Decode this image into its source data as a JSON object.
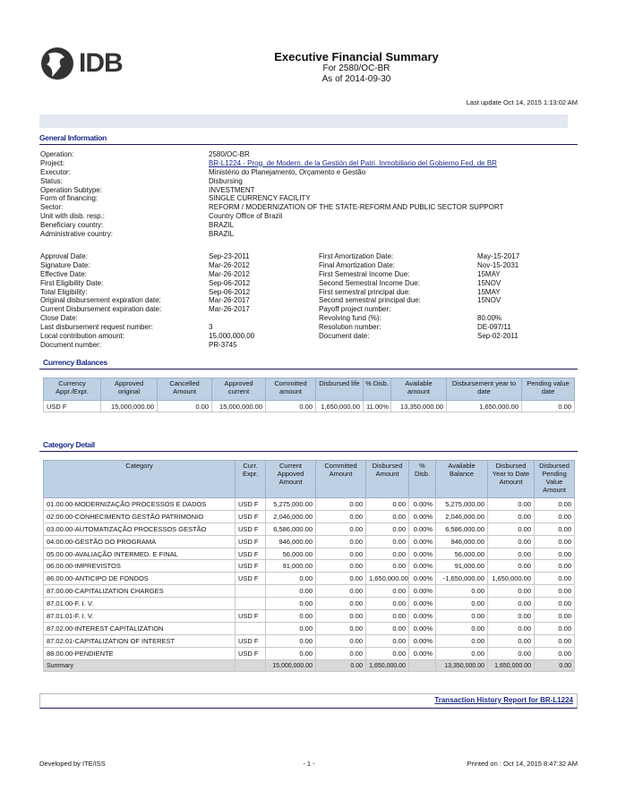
{
  "header": {
    "logo_text": "IDB",
    "title": "Executive Financial Summary",
    "subtitle": "For 2580/OC-BR",
    "as_of": "As of  2014-09-30",
    "last_update": "Last update Oct 14, 2015 1:13:02 AM"
  },
  "general": {
    "heading": "General Information",
    "rows": [
      [
        "Operation:",
        "2580/OC-BR"
      ],
      [
        "Project:",
        "BR-L1224 - Prog. de Modern. de la Gestión del Patri. Inmobiliario del Gobierno Fed. de BR"
      ],
      [
        "Executor:",
        "Ministério do Planejamento, Orçamento e Gestão"
      ],
      [
        "Status:",
        "Disbursing"
      ],
      [
        "Operation Subtype:",
        "INVESTMENT"
      ],
      [
        "Form of financing:",
        "SINGLE CURRENCY FACILITY"
      ],
      [
        "Sector:",
        "REFORM / MODERNIZATION OF THE STATE-REFORM AND PUBLIC SECTOR SUPPORT"
      ],
      [
        "Unit with disb. resp.:",
        "Country Office of Brazil"
      ],
      [
        "Beneficiary country:",
        "BRAZIL"
      ],
      [
        "Administrative country:",
        "BRAZIL"
      ]
    ],
    "dates_left": [
      [
        "Approval Date:",
        "Sep-23-2011"
      ],
      [
        "Signature Date:",
        "Mar-26-2012"
      ],
      [
        "Effective Date:",
        "Mar-26-2012"
      ],
      [
        "First Eligibility Date:",
        "Sep-06-2012"
      ],
      [
        "Total Eligibility:",
        "Sep-06-2012"
      ],
      [
        "Original disbursement expiration date:",
        "Mar-26-2017"
      ],
      [
        "Current Disbursement expiration date:",
        "Mar-26-2017"
      ],
      [
        "Close Date:",
        ""
      ],
      [
        "Last disbursement request number:",
        "3"
      ],
      [
        "Local contribution amount:",
        "15,000,000.00"
      ],
      [
        "Document number:",
        "PR-3745"
      ]
    ],
    "dates_right": [
      [
        "First Amortization Date:",
        "May-15-2017"
      ],
      [
        "Final Amortization Date:",
        "Nov-15-2031"
      ],
      [
        "First Semestral Income Due:",
        "15MAY"
      ],
      [
        "Second Semestral Income Due:",
        "15NOV"
      ],
      [
        "First semestral principal due:",
        "15MAY"
      ],
      [
        "Second semestral principal due:",
        "15NOV"
      ],
      [
        "Payoff project number:",
        ""
      ],
      [
        "Revolving fund (%):",
        "80.00%"
      ],
      [
        "Resolution number:",
        "DE-097/11"
      ],
      [
        "Document date:",
        "Sep-02-2011"
      ]
    ]
  },
  "currency": {
    "heading": "Currency Balances",
    "columns": [
      "Currency Appr./Expr.",
      "Approved original",
      "Cancelled Amount",
      "Approved current",
      "Committed amount",
      "Disbursed life",
      "% Disb.",
      "Available amount",
      "Disbursement year to date",
      "Pending value date"
    ],
    "rows": [
      [
        "USD F",
        "15,000,000.00",
        "0.00",
        "15,000,000.00",
        "0.00",
        "1,650,000.00",
        "11.00%",
        "13,350,000.00",
        "1,650,000.00",
        "0.00"
      ]
    ]
  },
  "category": {
    "heading": "Category Detail",
    "columns": [
      "Category",
      "Curr. Expr.",
      "Current Appoved Amount",
      "Committed Amount",
      "Disbursed Amount",
      "% Disb.",
      "Available Balance",
      "Disbursed Year to Date Amount",
      "Disbursed Pending Value Amount"
    ],
    "rows": [
      [
        "01.00.00-MODERNIZAÇÃO PROCESSOS E DADOS",
        "USD F",
        "5,275,000.00",
        "0.00",
        "0.00",
        "0.00%",
        "5,275,000.00",
        "0.00",
        "0.00"
      ],
      [
        "02.00.00-CONHECIMENTO GESTÃO PATRIMONIO",
        "USD F",
        "2,046,000.00",
        "0.00",
        "0.00",
        "0.00%",
        "2,046,000.00",
        "0.00",
        "0.00"
      ],
      [
        "03.00.00-AUTOMATIZAÇÃO PROCESSOS GESTÃO",
        "USD F",
        "6,586,000.00",
        "0.00",
        "0.00",
        "0.00%",
        "6,586,000.00",
        "0.00",
        "0.00"
      ],
      [
        "04.00.00-GESTÃO DO PROGRAMA",
        "USD F",
        "946,000.00",
        "0.00",
        "0.00",
        "0.00%",
        "946,000.00",
        "0.00",
        "0.00"
      ],
      [
        "05.00.00-AVALIAÇÃO INTERMED. E FINAL",
        "USD F",
        "56,000.00",
        "0.00",
        "0.00",
        "0.00%",
        "56,000.00",
        "0.00",
        "0.00"
      ],
      [
        "06.00.00-IMPREVISTOS",
        "USD F",
        "91,000.00",
        "0.00",
        "0.00",
        "0.00%",
        "91,000.00",
        "0.00",
        "0.00"
      ],
      [
        "86.00.00-ANTICIPO DE FONDOS",
        "USD F",
        "0.00",
        "0.00",
        "1,650,000.00",
        "0.00%",
        "-1,650,000.00",
        "1,650,000.00",
        "0.00"
      ],
      [
        "87.00.00-CAPITALIZATION CHARGES",
        "",
        "0.00",
        "0.00",
        "0.00",
        "0.00%",
        "0.00",
        "0.00",
        "0.00"
      ],
      [
        "87.01.00-F. I. V.",
        "",
        "0.00",
        "0.00",
        "0.00",
        "0.00%",
        "0.00",
        "0.00",
        "0.00"
      ],
      [
        "87.01.01-F. I. V.",
        "USD F",
        "0.00",
        "0.00",
        "0.00",
        "0.00%",
        "0.00",
        "0.00",
        "0.00"
      ],
      [
        "87.02.00-INTEREST CAPITALIZATION",
        "",
        "0.00",
        "0.00",
        "0.00",
        "0.00%",
        "0.00",
        "0.00",
        "0.00"
      ],
      [
        "87.02.01-CAPITALIZATION OF INTEREST",
        "USD F",
        "0.00",
        "0.00",
        "0.00",
        "0.00%",
        "0.00",
        "0.00",
        "0.00"
      ],
      [
        "88.00.00-PENDIENTE",
        "USD F",
        "0.00",
        "0.00",
        "0.00",
        "0.00%",
        "0.00",
        "0.00",
        "0.00"
      ]
    ],
    "summary": [
      "Summary",
      "",
      "15,000,000.00",
      "0.00",
      "1,650,000.00",
      "",
      "13,350,000.00",
      "1,650,000.00",
      "0.00"
    ]
  },
  "link": "Transaction History Report for BR-L1224",
  "footer": {
    "left": "Developed by ITE/ISS",
    "center": "- 1 -",
    "right": "Printed on : Oct 14, 2015  8:47:32 AM"
  }
}
